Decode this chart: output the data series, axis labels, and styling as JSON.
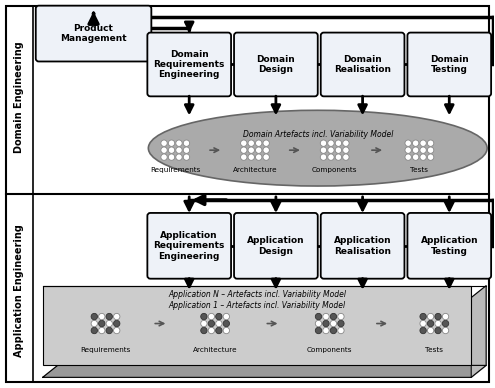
{
  "fig_width": 4.95,
  "fig_height": 3.88,
  "dpi": 100,
  "bg_color": "#ffffff",
  "domain_label": "Domain Engineering",
  "application_label": "Application Engineering",
  "domain_boxes": [
    "Domain\nRequirements\nEngineering",
    "Domain\nDesign",
    "Domain\nRealisation",
    "Domain\nTesting"
  ],
  "application_boxes": [
    "Application\nRequirements\nEngineering",
    "Application\nDesign",
    "Application\nRealisation",
    "Application\nTesting"
  ],
  "product_mgmt_label": "Product\nManagement",
  "domain_artefacts_label": "Domain Artefacts incl. Variability Model",
  "app_artefacts_label1": "Application N – Artefacts incl. Variability Model",
  "app_artefacts_label2": "Application 1 – Artefacts incl. Variability Model",
  "artefact_labels": [
    "Requirements",
    "Architecture",
    "Components",
    "Tests"
  ],
  "box_facecolor": "#eef2f8",
  "box_edgecolor": "#000000",
  "ellipse_facecolor": "#aaaaaa",
  "ellipse_edgecolor": "#777777",
  "title_fontsize": 6.5,
  "side_label_fontsize": 7.0,
  "artefact_fontsize": 5.2
}
